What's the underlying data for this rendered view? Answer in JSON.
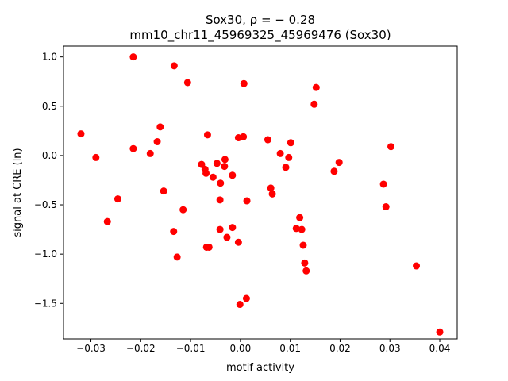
{
  "chart_data": {
    "type": "scatter",
    "title_line1": "Sox30, ρ = − 0.28",
    "title_line2": "mm10_chr11_45969325_45969476 (Sox30)",
    "xlabel": "motif activity",
    "ylabel": "signal at CRE (ln)",
    "xlim": [
      -0.0355,
      0.0435
    ],
    "ylim": [
      -1.86,
      1.11
    ],
    "xticks": [
      -0.03,
      -0.02,
      -0.01,
      0.0,
      0.01,
      0.02,
      0.03,
      0.04
    ],
    "xtick_labels": [
      "−0.03",
      "−0.02",
      "−0.01",
      "0.00",
      "0.01",
      "0.02",
      "0.03",
      "0.04"
    ],
    "yticks": [
      1.0,
      0.5,
      0.0,
      -0.5,
      -1.0,
      -1.5
    ],
    "ytick_labels": [
      "1.0",
      "0.5",
      "0.0",
      "−0.5",
      "−1.0",
      "−1.5"
    ],
    "marker_color": "#ff0000",
    "grid": false,
    "points": [
      {
        "x": -0.0215,
        "y": 1.0
      },
      {
        "x": -0.0133,
        "y": 0.91
      },
      {
        "x": -0.0106,
        "y": 0.74
      },
      {
        "x": 0.0007,
        "y": 0.73
      },
      {
        "x": 0.0152,
        "y": 0.69
      },
      {
        "x": 0.0148,
        "y": 0.52
      },
      {
        "x": -0.032,
        "y": 0.22
      },
      {
        "x": -0.0161,
        "y": 0.29
      },
      {
        "x": -0.0066,
        "y": 0.21
      },
      {
        "x": -0.0004,
        "y": 0.18
      },
      {
        "x": 0.0006,
        "y": 0.19
      },
      {
        "x": 0.0055,
        "y": 0.16
      },
      {
        "x": 0.0101,
        "y": 0.13
      },
      {
        "x": -0.0167,
        "y": 0.14
      },
      {
        "x": -0.0215,
        "y": 0.07
      },
      {
        "x": -0.029,
        "y": -0.02
      },
      {
        "x": -0.0181,
        "y": 0.02
      },
      {
        "x": 0.008,
        "y": 0.02
      },
      {
        "x": 0.0097,
        "y": -0.02
      },
      {
        "x": 0.0302,
        "y": 0.09
      },
      {
        "x": 0.0198,
        "y": -0.07
      },
      {
        "x": -0.0031,
        "y": -0.04
      },
      {
        "x": -0.0047,
        "y": -0.08
      },
      {
        "x": -0.0078,
        "y": -0.09
      },
      {
        "x": -0.0032,
        "y": -0.11
      },
      {
        "x": -0.0071,
        "y": -0.14
      },
      {
        "x": -0.0069,
        "y": -0.18
      },
      {
        "x": -0.0055,
        "y": -0.22
      },
      {
        "x": -0.0016,
        "y": -0.2
      },
      {
        "x": 0.0091,
        "y": -0.12
      },
      {
        "x": 0.0188,
        "y": -0.16
      },
      {
        "x": 0.0287,
        "y": -0.29
      },
      {
        "x": -0.004,
        "y": -0.28
      },
      {
        "x": 0.0061,
        "y": -0.33
      },
      {
        "x": 0.0064,
        "y": -0.39
      },
      {
        "x": -0.0154,
        "y": -0.36
      },
      {
        "x": -0.0246,
        "y": -0.44
      },
      {
        "x": -0.0041,
        "y": -0.45
      },
      {
        "x": 0.0013,
        "y": -0.46
      },
      {
        "x": 0.0292,
        "y": -0.52
      },
      {
        "x": -0.0115,
        "y": -0.55
      },
      {
        "x": -0.0267,
        "y": -0.67
      },
      {
        "x": 0.0119,
        "y": -0.63
      },
      {
        "x": -0.0016,
        "y": -0.73
      },
      {
        "x": 0.0112,
        "y": -0.74
      },
      {
        "x": 0.0123,
        "y": -0.75
      },
      {
        "x": -0.0041,
        "y": -0.75
      },
      {
        "x": -0.0134,
        "y": -0.77
      },
      {
        "x": -0.0027,
        "y": -0.83
      },
      {
        "x": -0.0004,
        "y": -0.88
      },
      {
        "x": 0.0126,
        "y": -0.91
      },
      {
        "x": -0.0068,
        "y": -0.93
      },
      {
        "x": -0.0063,
        "y": -0.93
      },
      {
        "x": -0.0127,
        "y": -1.03
      },
      {
        "x": 0.0129,
        "y": -1.09
      },
      {
        "x": 0.0353,
        "y": -1.12
      },
      {
        "x": 0.0132,
        "y": -1.17
      },
      {
        "x": 0.0012,
        "y": -1.45
      },
      {
        "x": -0.0001,
        "y": -1.51
      },
      {
        "x": 0.04,
        "y": -1.79
      }
    ]
  }
}
